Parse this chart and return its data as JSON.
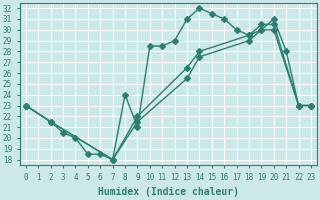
{
  "xlabel": "Humidex (Indice chaleur)",
  "bg_color": "#cce8e8",
  "line_color": "#2e7d6e",
  "grid_color": "#ffffff",
  "xlim": [
    -0.5,
    23.5
  ],
  "ylim": [
    17.5,
    32.5
  ],
  "xticks": [
    0,
    1,
    2,
    3,
    4,
    5,
    6,
    7,
    8,
    9,
    10,
    11,
    12,
    13,
    14,
    15,
    16,
    17,
    18,
    19,
    20,
    21,
    22,
    23
  ],
  "yticks": [
    18,
    19,
    20,
    21,
    22,
    23,
    24,
    25,
    26,
    27,
    28,
    29,
    30,
    31,
    32
  ],
  "line1_x": [
    0,
    2,
    3,
    4,
    5,
    6,
    7,
    8,
    9,
    10,
    11,
    12,
    13,
    14,
    15,
    16,
    17,
    18,
    19,
    20,
    21,
    22,
    23
  ],
  "line1_y": [
    23.0,
    21.5,
    20.5,
    20.0,
    18.5,
    18.5,
    18.0,
    24.0,
    21.0,
    28.5,
    28.5,
    29.0,
    31.0,
    32.0,
    31.5,
    31.0,
    30.0,
    29.5,
    30.0,
    31.0,
    28.0,
    23.0,
    23.0
  ],
  "line2_x": [
    0,
    2,
    7,
    9,
    13,
    14,
    18,
    19,
    20,
    22,
    23
  ],
  "line2_y": [
    23.0,
    21.5,
    18.0,
    21.5,
    25.5,
    27.5,
    29.0,
    30.0,
    30.0,
    23.0,
    23.0
  ],
  "line3_x": [
    0,
    2,
    7,
    9,
    13,
    14,
    18,
    19,
    20,
    22,
    23
  ],
  "line3_y": [
    23.0,
    21.5,
    18.0,
    22.0,
    26.5,
    28.0,
    29.5,
    30.5,
    30.5,
    23.0,
    23.0
  ],
  "markersize": 3.0,
  "linewidth": 1.0,
  "xlabel_fontsize": 7,
  "tick_fontsize": 5.5
}
